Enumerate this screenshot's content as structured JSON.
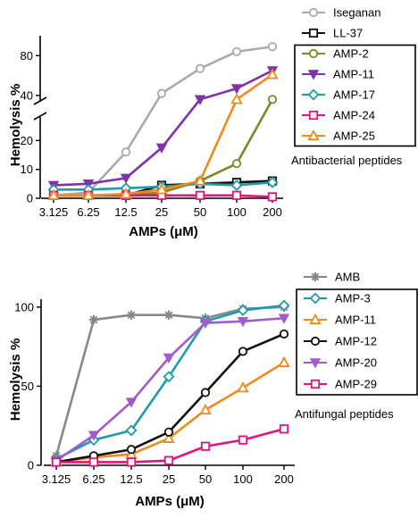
{
  "chart_data": [
    {
      "type": "line",
      "categories": [
        "3.125",
        "6.25",
        "12.5",
        "25",
        "50",
        "100",
        "200"
      ],
      "xlabel": "AMPs (μM)",
      "ylabel": "Hemolysis %",
      "y_broken": true,
      "y_lower_range": [
        0,
        30
      ],
      "y_upper_range": [
        30,
        100
      ],
      "y_lower_ticks": [
        "0",
        "10",
        "20"
      ],
      "y_upper_ticks": [
        "40",
        "80"
      ],
      "annotation": "Antibacterial peptides",
      "legend_position": "right",
      "series": [
        {
          "name": "Iseganan",
          "color": "#aaaaaa",
          "marker": "circle",
          "values": [
            1,
            2,
            16,
            42,
            67,
            84,
            89
          ]
        },
        {
          "name": "LL-37",
          "color": "#111111",
          "marker": "square",
          "values": [
            1,
            1,
            1,
            4.5,
            5,
            5.5,
            6
          ]
        },
        {
          "name": "AMP-2",
          "color": "#7a8a2a",
          "marker": "circle",
          "values": [
            1,
            1,
            1,
            2,
            6,
            12,
            36
          ]
        },
        {
          "name": "AMP-11",
          "color": "#7e33a8",
          "marker": "triangle-down",
          "values": [
            4.5,
            5,
            7,
            17.5,
            36,
            47,
            65
          ]
        },
        {
          "name": "AMP-17",
          "color": "#1f9aaa",
          "marker": "diamond",
          "values": [
            3,
            3,
            3.5,
            4,
            5,
            4.5,
            5.5
          ]
        },
        {
          "name": "AMP-24",
          "color": "#e0157a",
          "marker": "square",
          "values": [
            1,
            1,
            1,
            1,
            1,
            1,
            0.5
          ]
        },
        {
          "name": "AMP-25",
          "color": "#f08a1c",
          "marker": "triangle-up",
          "values": [
            1,
            1,
            1.5,
            3,
            6,
            36,
            61
          ]
        }
      ]
    },
    {
      "type": "line",
      "categories": [
        "3.125",
        "6.25",
        "12.5",
        "25",
        "50",
        "100",
        "200"
      ],
      "xlabel": "AMPs (μM)",
      "ylabel": "Hemolysis %",
      "ylim": [
        0,
        105
      ],
      "y_ticks": [
        "0",
        "50",
        "100"
      ],
      "annotation": "Antifungal peptides",
      "legend_position": "right",
      "series": [
        {
          "name": "AMB",
          "color": "#888888",
          "marker": "star",
          "values": [
            6,
            92,
            95,
            95,
            93,
            99,
            100
          ]
        },
        {
          "name": "AMP-3",
          "color": "#1f9aaa",
          "marker": "diamond",
          "values": [
            4,
            16,
            22,
            56,
            91,
            98,
            101
          ]
        },
        {
          "name": "AMP-11",
          "color": "#f08a1c",
          "marker": "triangle-up",
          "values": [
            2,
            5,
            7,
            17,
            35,
            49,
            65
          ]
        },
        {
          "name": "AMP-12",
          "color": "#111111",
          "marker": "circle",
          "values": [
            2,
            6,
            10,
            21,
            46,
            72,
            83
          ]
        },
        {
          "name": "AMP-20",
          "color": "#a05cc8",
          "marker": "triangle-down",
          "values": [
            3,
            19,
            40,
            68,
            90,
            91,
            93
          ]
        },
        {
          "name": "AMP-29",
          "color": "#e0157a",
          "marker": "square",
          "values": [
            2,
            2,
            2,
            3,
            12,
            16,
            23
          ]
        }
      ]
    }
  ]
}
